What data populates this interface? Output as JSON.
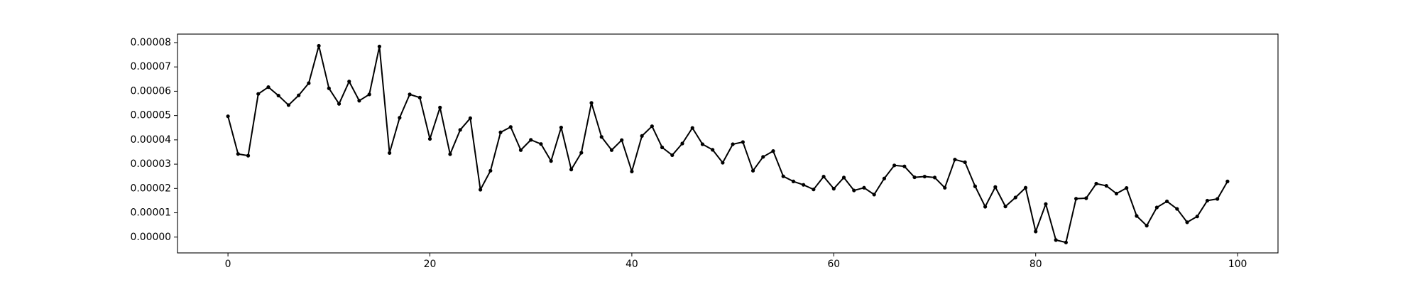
{
  "chart_data": {
    "type": "line",
    "title": "",
    "xlabel": "",
    "ylabel": "",
    "xlim": [
      -5,
      104
    ],
    "ylim": [
      -6.5e-06,
      8.35e-05
    ],
    "x_ticks": [
      0,
      20,
      40,
      60,
      80,
      100
    ],
    "x_tick_labels": [
      "0",
      "20",
      "40",
      "60",
      "80",
      "100"
    ],
    "y_ticks": [
      0,
      1e-05,
      2e-05,
      3e-05,
      4e-05,
      5e-05,
      6e-05,
      7e-05,
      8e-05
    ],
    "y_tick_labels": [
      "0.00000",
      "0.00001",
      "0.00002",
      "0.00003",
      "0.00004",
      "0.00005",
      "0.00006",
      "0.00007",
      "0.00008"
    ],
    "grid": false,
    "legend": "none",
    "series": [
      {
        "line_color": "#000000",
        "marker": "dot",
        "x": [
          0,
          1,
          2,
          3,
          4,
          5,
          6,
          7,
          8,
          9,
          10,
          11,
          12,
          13,
          14,
          15,
          16,
          17,
          18,
          19,
          20,
          21,
          22,
          23,
          24,
          25,
          26,
          27,
          28,
          29,
          30,
          31,
          32,
          33,
          34,
          35,
          36,
          37,
          38,
          39,
          40,
          41,
          42,
          43,
          44,
          45,
          46,
          47,
          48,
          49,
          50,
          51,
          52,
          53,
          54,
          55,
          56,
          57,
          58,
          59,
          60,
          61,
          62,
          63,
          64,
          65,
          66,
          67,
          68,
          69,
          70,
          71,
          72,
          73,
          74,
          75,
          76,
          77,
          78,
          79,
          80,
          81,
          82,
          83,
          84,
          85,
          86,
          87,
          88,
          89,
          90,
          91,
          92,
          93,
          94,
          95,
          96,
          97,
          98,
          99
        ],
        "values": [
          4.97e-05,
          3.42e-05,
          3.35e-05,
          5.89e-05,
          6.17e-05,
          5.82e-05,
          5.43e-05,
          5.83e-05,
          6.33e-05,
          7.87e-05,
          6.12e-05,
          5.48e-05,
          6.4e-05,
          5.61e-05,
          5.87e-05,
          7.84e-05,
          3.46e-05,
          4.91e-05,
          5.87e-05,
          5.74e-05,
          4.04e-05,
          5.33e-05,
          3.41e-05,
          4.41e-05,
          4.89e-05,
          1.95e-05,
          2.73e-05,
          4.31e-05,
          4.53e-05,
          3.58e-05,
          4e-05,
          3.83e-05,
          3.13e-05,
          4.51e-05,
          2.78e-05,
          3.47e-05,
          5.52e-05,
          4.12e-05,
          3.58e-05,
          3.99e-05,
          2.7e-05,
          4.16e-05,
          4.56e-05,
          3.69e-05,
          3.37e-05,
          3.85e-05,
          4.49e-05,
          3.82e-05,
          3.59e-05,
          3.06e-05,
          3.82e-05,
          3.91e-05,
          2.73e-05,
          3.3e-05,
          3.54e-05,
          2.5e-05,
          2.29e-05,
          2.15e-05,
          1.96e-05,
          2.49e-05,
          1.99e-05,
          2.45e-05,
          1.92e-05,
          2.03e-05,
          1.75e-05,
          2.41e-05,
          2.95e-05,
          2.91e-05,
          2.46e-05,
          2.49e-05,
          2.45e-05,
          2.03e-05,
          3.19e-05,
          3.08e-05,
          2.09e-05,
          1.25e-05,
          2.06e-05,
          1.26e-05,
          1.63e-05,
          2.03e-05,
          2.3e-06,
          1.36e-05,
          -1.2e-06,
          -2.2e-06,
          1.58e-05,
          1.6e-05,
          2.2e-05,
          2.11e-05,
          1.79e-05,
          2.02e-05,
          8.7e-06,
          4.7e-06,
          1.22e-05,
          1.47e-05,
          1.16e-05,
          6.1e-06,
          8.5e-06,
          1.5e-05,
          1.57e-05,
          2.29e-05
        ]
      }
    ]
  }
}
